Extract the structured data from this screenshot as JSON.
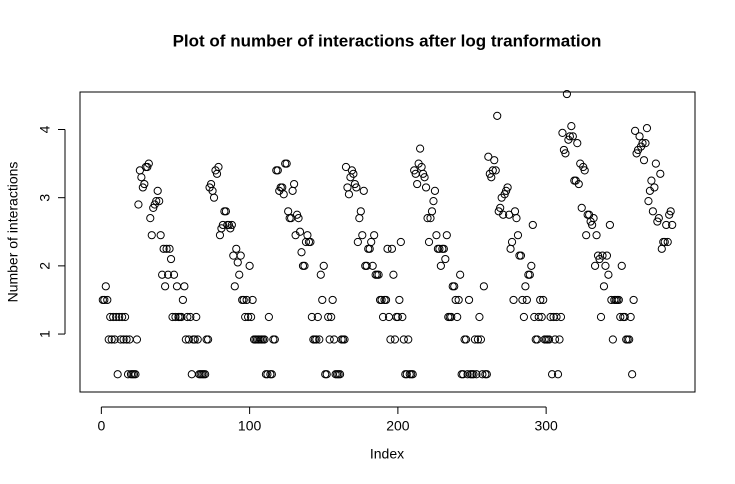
{
  "chart_data": {
    "type": "scatter",
    "title": "Plot of number of interactions after log tranformation",
    "x_label": "Index",
    "y_label": "Number of interactions",
    "values": [
      1.5,
      1.5,
      1.7,
      1.5,
      0.92,
      1.25,
      0.92,
      1.25,
      0.92,
      1.25,
      0.41,
      1.25,
      0.92,
      1.25,
      0.92,
      1.25,
      0.92,
      0.41,
      0.92,
      0.41,
      0.41,
      0.41,
      0.41,
      0.92,
      2.9,
      3.4,
      3.3,
      3.15,
      3.2,
      3.45,
      3.45,
      3.5,
      2.7,
      2.45,
      2.85,
      2.9,
      2.95,
      3.1,
      2.95,
      2.45,
      1.87,
      2.25,
      1.7,
      2.25,
      1.87,
      2.25,
      2.1,
      1.25,
      1.87,
      1.25,
      1.7,
      1.25,
      1.25,
      1.25,
      1.5,
      1.7,
      0.92,
      1.25,
      0.92,
      1.25,
      0.41,
      0.92,
      0.92,
      1.25,
      0.92,
      0.41,
      0.41,
      0.41,
      0.41,
      0.41,
      0.92,
      0.92,
      3.15,
      3.2,
      3.1,
      3.0,
      3.4,
      3.35,
      3.45,
      2.45,
      2.55,
      2.6,
      2.8,
      2.8,
      2.6,
      2.6,
      2.55,
      2.6,
      2.15,
      1.7,
      2.25,
      2.05,
      1.87,
      2.15,
      1.5,
      1.5,
      1.25,
      1.5,
      1.25,
      2.0,
      1.25,
      1.5,
      0.92,
      0.92,
      0.92,
      0.92,
      0.92,
      0.92,
      0.92,
      0.92,
      0.41,
      0.41,
      1.25,
      0.41,
      0.41,
      0.92,
      0.92,
      3.4,
      3.4,
      3.1,
      3.15,
      3.15,
      3.05,
      3.5,
      3.5,
      2.8,
      2.7,
      2.7,
      3.1,
      3.2,
      2.45,
      2.75,
      2.7,
      2.5,
      2.2,
      2.0,
      2.0,
      2.35,
      2.45,
      2.35,
      2.35,
      1.25,
      0.92,
      0.92,
      0.92,
      1.25,
      0.92,
      1.87,
      1.5,
      2.0,
      0.41,
      0.41,
      1.25,
      0.92,
      1.25,
      1.5,
      0.92,
      0.41,
      0.41,
      0.41,
      0.41,
      0.92,
      0.92,
      0.92,
      3.45,
      3.15,
      3.05,
      3.3,
      3.4,
      3.35,
      3.2,
      3.15,
      2.35,
      2.7,
      2.8,
      2.45,
      3.1,
      2.0,
      2.0,
      2.25,
      2.25,
      2.35,
      2.0,
      2.45,
      1.87,
      1.87,
      1.87,
      1.5,
      1.5,
      1.25,
      1.5,
      1.5,
      2.25,
      1.25,
      0.92,
      2.25,
      1.87,
      0.92,
      1.25,
      1.25,
      1.5,
      2.35,
      1.25,
      0.92,
      0.41,
      0.41,
      0.92,
      0.41,
      0.41,
      0.41,
      3.4,
      3.35,
      3.2,
      3.5,
      3.72,
      3.45,
      3.35,
      3.3,
      3.15,
      2.7,
      2.35,
      2.7,
      2.8,
      2.95,
      3.1,
      2.45,
      2.25,
      2.25,
      2.0,
      2.25,
      2.25,
      2.1,
      2.45,
      1.25,
      1.25,
      1.25,
      1.7,
      1.7,
      1.5,
      1.25,
      1.5,
      1.87,
      0.41,
      0.41,
      0.92,
      0.92,
      0.41,
      1.5,
      0.41,
      0.41,
      0.41,
      0.92,
      0.41,
      0.92,
      1.25,
      0.92,
      0.41,
      1.7,
      0.41,
      0.41,
      3.6,
      3.35,
      3.3,
      3.4,
      3.55,
      3.4,
      4.2,
      2.8,
      2.85,
      3.0,
      2.75,
      3.05,
      3.1,
      3.15,
      2.75,
      2.25,
      2.35,
      1.5,
      2.8,
      2.7,
      2.45,
      2.15,
      2.15,
      1.5,
      1.25,
      1.7,
      1.5,
      1.87,
      1.87,
      2.0,
      2.6,
      1.25,
      0.92,
      0.92,
      1.25,
      1.5,
      1.25,
      1.5,
      0.92,
      0.92,
      0.92,
      0.92,
      1.25,
      0.41,
      1.25,
      0.92,
      1.25,
      0.41,
      0.92,
      1.25,
      3.95,
      3.7,
      3.65,
      4.52,
      3.85,
      3.9,
      4.05,
      3.9,
      3.25,
      3.25,
      3.8,
      3.2,
      3.5,
      2.85,
      3.45,
      3.4,
      2.45,
      2.75,
      2.75,
      2.65,
      2.6,
      2.7,
      2.0,
      2.45,
      2.15,
      2.1,
      1.25,
      2.15,
      1.7,
      2.0,
      2.15,
      1.87,
      2.6,
      1.5,
      0.92,
      1.5,
      1.5,
      1.5,
      1.5,
      1.25,
      2.0,
      1.25,
      1.25,
      0.92,
      0.92,
      0.92,
      1.25,
      0.41,
      1.5,
      3.98,
      3.65,
      3.7,
      3.9,
      3.75,
      3.8,
      3.55,
      3.8,
      4.02,
      2.95,
      3.1,
      3.25,
      2.8,
      3.15,
      3.5,
      2.65,
      2.7,
      3.35,
      2.25,
      2.35,
      2.35,
      2.6,
      2.35,
      2.75,
      2.8,
      2.6
    ],
    "color": "#000000",
    "xlim": [
      -14.4,
      400.4
    ],
    "ylim": [
      0.15,
      4.55
    ],
    "xticks": [
      0,
      100,
      200,
      300
    ],
    "yticks": [
      1,
      2,
      3,
      4
    ]
  }
}
